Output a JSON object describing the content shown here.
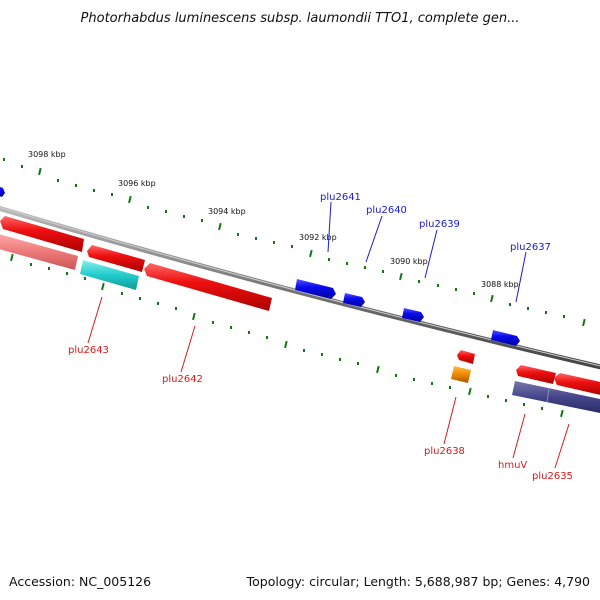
{
  "title": "Photorhabdus luminescens subsp. laumondii TTO1, complete gen...",
  "footer": {
    "accession": "Accession: NC_005126",
    "topology": "Topology: circular; Length: 5,688,987 bp; Genes: 4,790"
  },
  "scale_labels": [
    "3098 kbp",
    "3096 kbp",
    "3094 kbp",
    "3092 kbp",
    "3090 kbp",
    "3088 kbp"
  ],
  "gene_labels": {
    "plu2641": "plu2641",
    "plu2640": "plu2640",
    "plu2639": "plu2639",
    "plu2637": "plu2637",
    "plu2643": "plu2643",
    "plu2642": "plu2642",
    "plu2638": "plu2638",
    "hmuV": "hmuV",
    "plu2635": "plu2635"
  },
  "colors": {
    "forward_gene": "#0a0aee",
    "reverse_gene": "#ee1010",
    "cyan_gene": "#22cccc",
    "orange_gene": "#ee8800",
    "indigo_gene": "#44448a",
    "pink_gene": "#ee7a7a",
    "backbone": "#777777",
    "tick": "#117711",
    "label_blue": "#1a1ad8",
    "label_red": "#d81a1a"
  }
}
